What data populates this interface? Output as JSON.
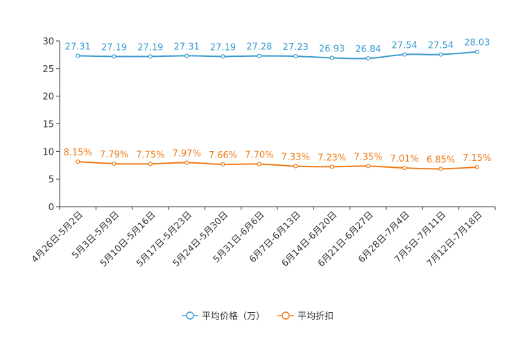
{
  "chart_data": {
    "type": "line",
    "categories": [
      "4月26日-5月2日",
      "5月3日-5月9日",
      "5月10日-5月16日",
      "5月17日-5月23日",
      "5月24日-5月30日",
      "5月31日-6月6日",
      "6月7日-6月13日",
      "6月14日-6月20日",
      "6月21日-6月27日",
      "6月28日-7月4日",
      "7月5日-7月11日",
      "7月12日-7月18日"
    ],
    "series": [
      {
        "name": "平均价格（万）",
        "color": "#3b9ad1",
        "values": [
          27.31,
          27.19,
          27.19,
          27.31,
          27.19,
          27.28,
          27.23,
          26.93,
          26.84,
          27.54,
          27.54,
          28.03
        ],
        "labels": [
          "27.31",
          "27.19",
          "27.19",
          "27.31",
          "27.19",
          "27.28",
          "27.23",
          "26.93",
          "26.84",
          "27.54",
          "27.54",
          "28.03"
        ]
      },
      {
        "name": "平均折扣",
        "color": "#f07a16",
        "values": [
          8.15,
          7.79,
          7.75,
          7.97,
          7.66,
          7.7,
          7.33,
          7.23,
          7.35,
          7.01,
          6.85,
          7.15
        ],
        "labels": [
          "8.15%",
          "7.79%",
          "7.75%",
          "7.97%",
          "7.66%",
          "7.70%",
          "7.33%",
          "7.23%",
          "7.35%",
          "7.01%",
          "6.85%",
          "7.15%"
        ]
      }
    ],
    "yticks": [
      "0",
      "5",
      "10",
      "15",
      "20",
      "25",
      "30"
    ],
    "ylim": [
      0,
      30
    ],
    "title": "",
    "xlabel": "",
    "ylabel": "",
    "legend_position": "bottom-center"
  }
}
